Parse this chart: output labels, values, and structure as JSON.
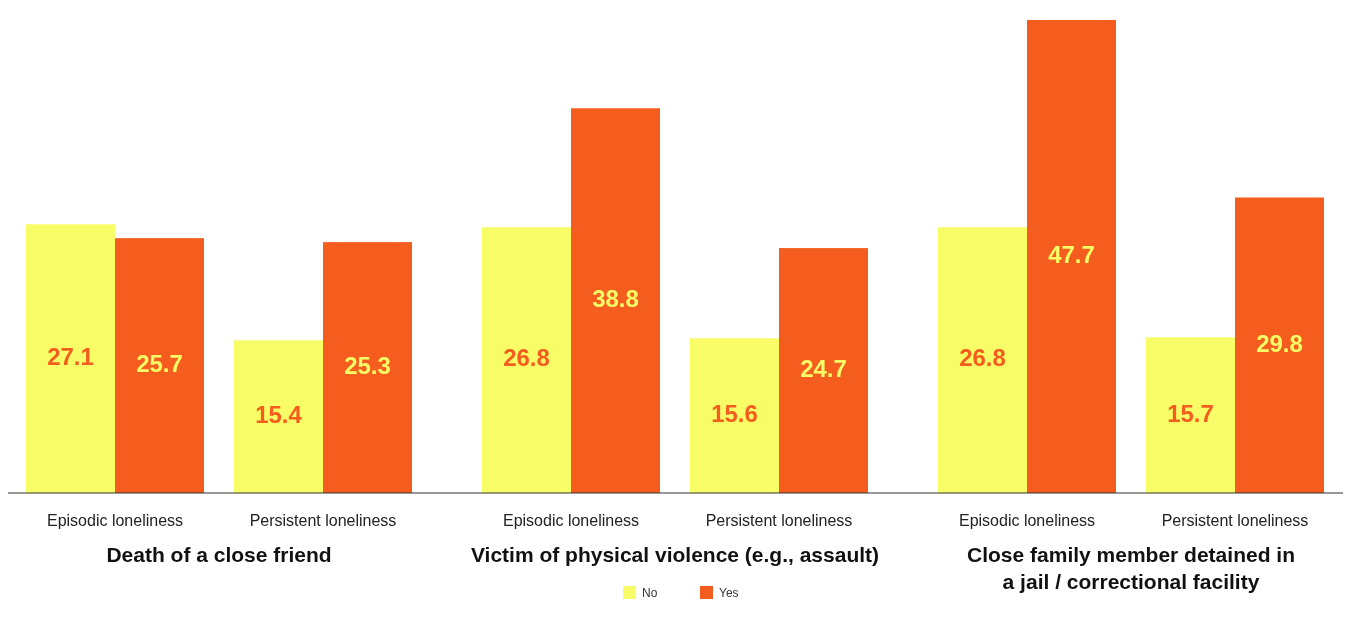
{
  "chart_data": {
    "type": "bar",
    "categories": [
      "Episodic loneliness",
      "Persistent loneliness",
      "Episodic loneliness",
      "Persistent loneliness",
      "Episodic loneliness",
      "Persistent loneliness"
    ],
    "series": [
      {
        "name": "No",
        "color": "#f8fc66",
        "values": [
          27.1,
          15.4,
          26.8,
          15.6,
          26.8,
          15.7
        ]
      },
      {
        "name": "Yes",
        "color": "#f45d1e",
        "values": [
          25.7,
          25.3,
          38.8,
          24.7,
          47.7,
          29.8
        ]
      }
    ],
    "data_labels": true,
    "legend": "bottom",
    "annotations": [
      "Death of a close friend",
      "Victim of physical violence (e.g., assault)",
      "Close family member detained in a jail / correctional facility"
    ]
  }
}
